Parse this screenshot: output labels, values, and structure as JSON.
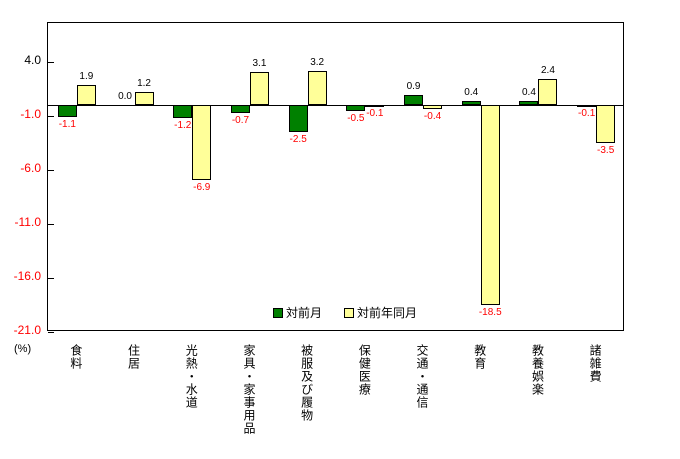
{
  "chart_data": {
    "type": "bar",
    "title": "",
    "categories": [
      "食料",
      "住居",
      "光熱・水道",
      "家具・家事用品",
      "被服及び履物",
      "保健医療",
      "交通・通信",
      "教育",
      "教養娯楽",
      "諸雑費"
    ],
    "series": [
      {
        "name": "対前月",
        "color": "#008000",
        "values": [
          -1.1,
          0.0,
          -1.2,
          -0.7,
          -2.5,
          -0.5,
          0.9,
          0.4,
          0.4,
          -0.1
        ]
      },
      {
        "name": "対前年同月",
        "color": "#FFFF99",
        "values": [
          1.9,
          1.2,
          -6.9,
          3.1,
          3.2,
          -0.1,
          -0.4,
          -18.5,
          2.4,
          -3.5
        ]
      }
    ],
    "xlabel": "",
    "ylabel": "(%)",
    "ytick_labels": [
      "4.0",
      "-1.0",
      "-6.0",
      "-11.0",
      "-16.0",
      "-21.0"
    ],
    "ylim": [
      -21.0,
      7.6
    ],
    "grid": false,
    "legend_position": "bottom-center-inside",
    "colors": {
      "positive_label": "#000000",
      "negative_label": "#FF0000",
      "axis": "#000000",
      "background": "#FFFFFF"
    }
  }
}
